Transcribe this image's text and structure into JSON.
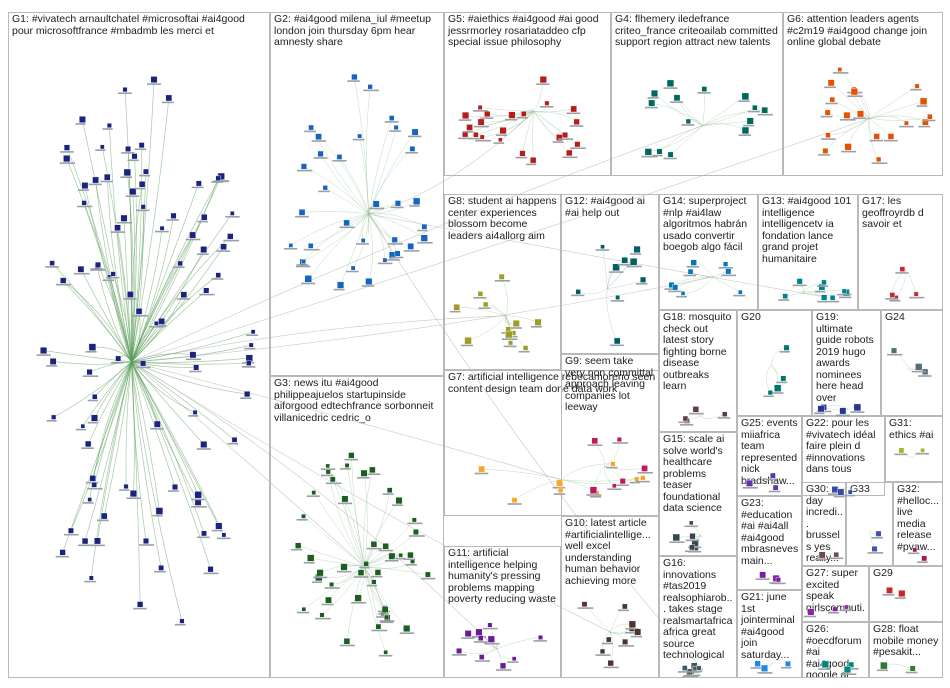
{
  "groups": [
    {
      "id": "G1",
      "label": "G1: #vivatech arnaultchatel #microsoftai #ai4good pour microsoftfrance #mbadmb les merci et",
      "color": "#1a237e",
      "node_count": 95
    },
    {
      "id": "G2",
      "label": "G2: #ai4good milena_iul #meetup london join thursday 6pm hear amnesty share",
      "color": "#1565c0",
      "node_count": 34
    },
    {
      "id": "G3",
      "label": "G3: news itu #ai4good philippeajuelos startupinside aiforgood edtechfrance sorbonneit villanicedric cedric_o",
      "color": "#1b5e20",
      "node_count": 44
    },
    {
      "id": "G4",
      "label": "G4: flhemery iledefrance criteo_france criteoailab committed support region attract new talents",
      "color": "#00695c",
      "node_count": 14
    },
    {
      "id": "G5",
      "label": "G5: #aiethics #ai4good #ai good jessrmorley rosariataddeo cfp special issue philosophy",
      "color": "#b71c1c",
      "node_count": 22
    },
    {
      "id": "G6",
      "label": "G6: attention leaders agents #c2m19 #ai4good change join online global debate",
      "color": "#e65100",
      "node_count": 19
    },
    {
      "id": "G7",
      "label": "G7: artificial intelligence rebecamoreno seen content design team done data work",
      "color": "#f9a825",
      "node_count": 8
    },
    {
      "id": "G8",
      "label": "G8: student ai happens center experiences blossom become leaders ai4allorg aim",
      "color": "#9e9d24",
      "node_count": 12
    },
    {
      "id": "G9",
      "label": "G9: seem take very non committal approach leaving companies lot leeway",
      "color": "#c2185b",
      "node_count": 6
    },
    {
      "id": "G10",
      "label": "G10: latest article #artificialintellige... well excel understanding human behavior achieving more",
      "color": "#4e342e",
      "node_count": 9
    },
    {
      "id": "G11",
      "label": "G11: artificial intelligence helping humanity's pressing problems mapping poverty reducing waste",
      "color": "#6a1b9a",
      "node_count": 10
    },
    {
      "id": "G12",
      "label": "G12: #ai4good ai #ai help out",
      "color": "#006064",
      "node_count": 9
    },
    {
      "id": "G13",
      "label": "G13: #ai4good 101 intelligence intelligencetv ia fondation lance grand projet humanitaire",
      "color": "#00838f",
      "node_count": 8
    },
    {
      "id": "G14",
      "label": "G14: superproject #nlp #ai4law algoritmos habrán usado convertir boegob algo fácil",
      "color": "#0277bd",
      "node_count": 8
    },
    {
      "id": "G15",
      "label": "G15: scale ai solve world's healthcare problems teaser foundational data science",
      "color": "#37474f",
      "node_count": 6
    },
    {
      "id": "G16",
      "label": "G16: innovations #tas2019 realsophiarob... takes stage realsmartafrica africa great source technological",
      "color": "#455a64",
      "node_count": 6
    },
    {
      "id": "G17",
      "label": "G17: les geoffroyrdb d savoir et",
      "color": "#c62828",
      "node_count": 4
    },
    {
      "id": "G18",
      "label": "G18: mosquito check out latest story fighting borne disease outbreaks learn",
      "color": "#5d4037",
      "node_count": 4
    },
    {
      "id": "G19",
      "label": "G19: ultimate guide robots 2019 hugo awards nominees here head over",
      "color": "#283593",
      "node_count": 4
    },
    {
      "id": "G20",
      "label": "G20",
      "color": "#00796b",
      "node_count": 4
    },
    {
      "id": "G21",
      "label": "G21: june 1st jointerminal #ai4good join saturday...",
      "color": "#1e88e5",
      "node_count": 3
    },
    {
      "id": "G22",
      "label": "G22: pour les #vivatech idéal faire plein d #innovations dans tous",
      "color": "#3949ab",
      "node_count": 3
    },
    {
      "id": "G23",
      "label": "G23: #education #ai #ai4all #ai4good mbrasneves main...",
      "color": "#7b1fa2",
      "node_count": 3
    },
    {
      "id": "G24",
      "label": "G24",
      "color": "#546e7a",
      "node_count": 3
    },
    {
      "id": "G25",
      "label": "G25: events miiafrica team represented nick bradshaw...",
      "color": "#5e35b1",
      "node_count": 3
    },
    {
      "id": "G26",
      "label": "G26: #oecdforum #ai #ai4good google ai",
      "color": "#00897b",
      "node_count": 3
    },
    {
      "id": "G27",
      "label": "G27: super excited speak girlscomputi...",
      "color": "#8e24aa",
      "node_count": 3
    },
    {
      "id": "G28",
      "label": "G28: float mobile money #pesakit...",
      "color": "#2e7d32",
      "node_count": 2
    },
    {
      "id": "G29",
      "label": "G29",
      "color": "#c62828",
      "node_count": 2
    },
    {
      "id": "G30",
      "label": "G30: day incredi... brussels yes really...",
      "color": "#6d4c41",
      "node_count": 2
    },
    {
      "id": "G31",
      "label": "G31: ethics #ai",
      "color": "#afb42b",
      "node_count": 2
    },
    {
      "id": "G32",
      "label": "G32: #helloc... live media release #pvaw...",
      "color": "#ad1457",
      "node_count": 2
    },
    {
      "id": "G33",
      "label": "G33",
      "color": "#3f51b5",
      "node_count": 2
    }
  ]
}
